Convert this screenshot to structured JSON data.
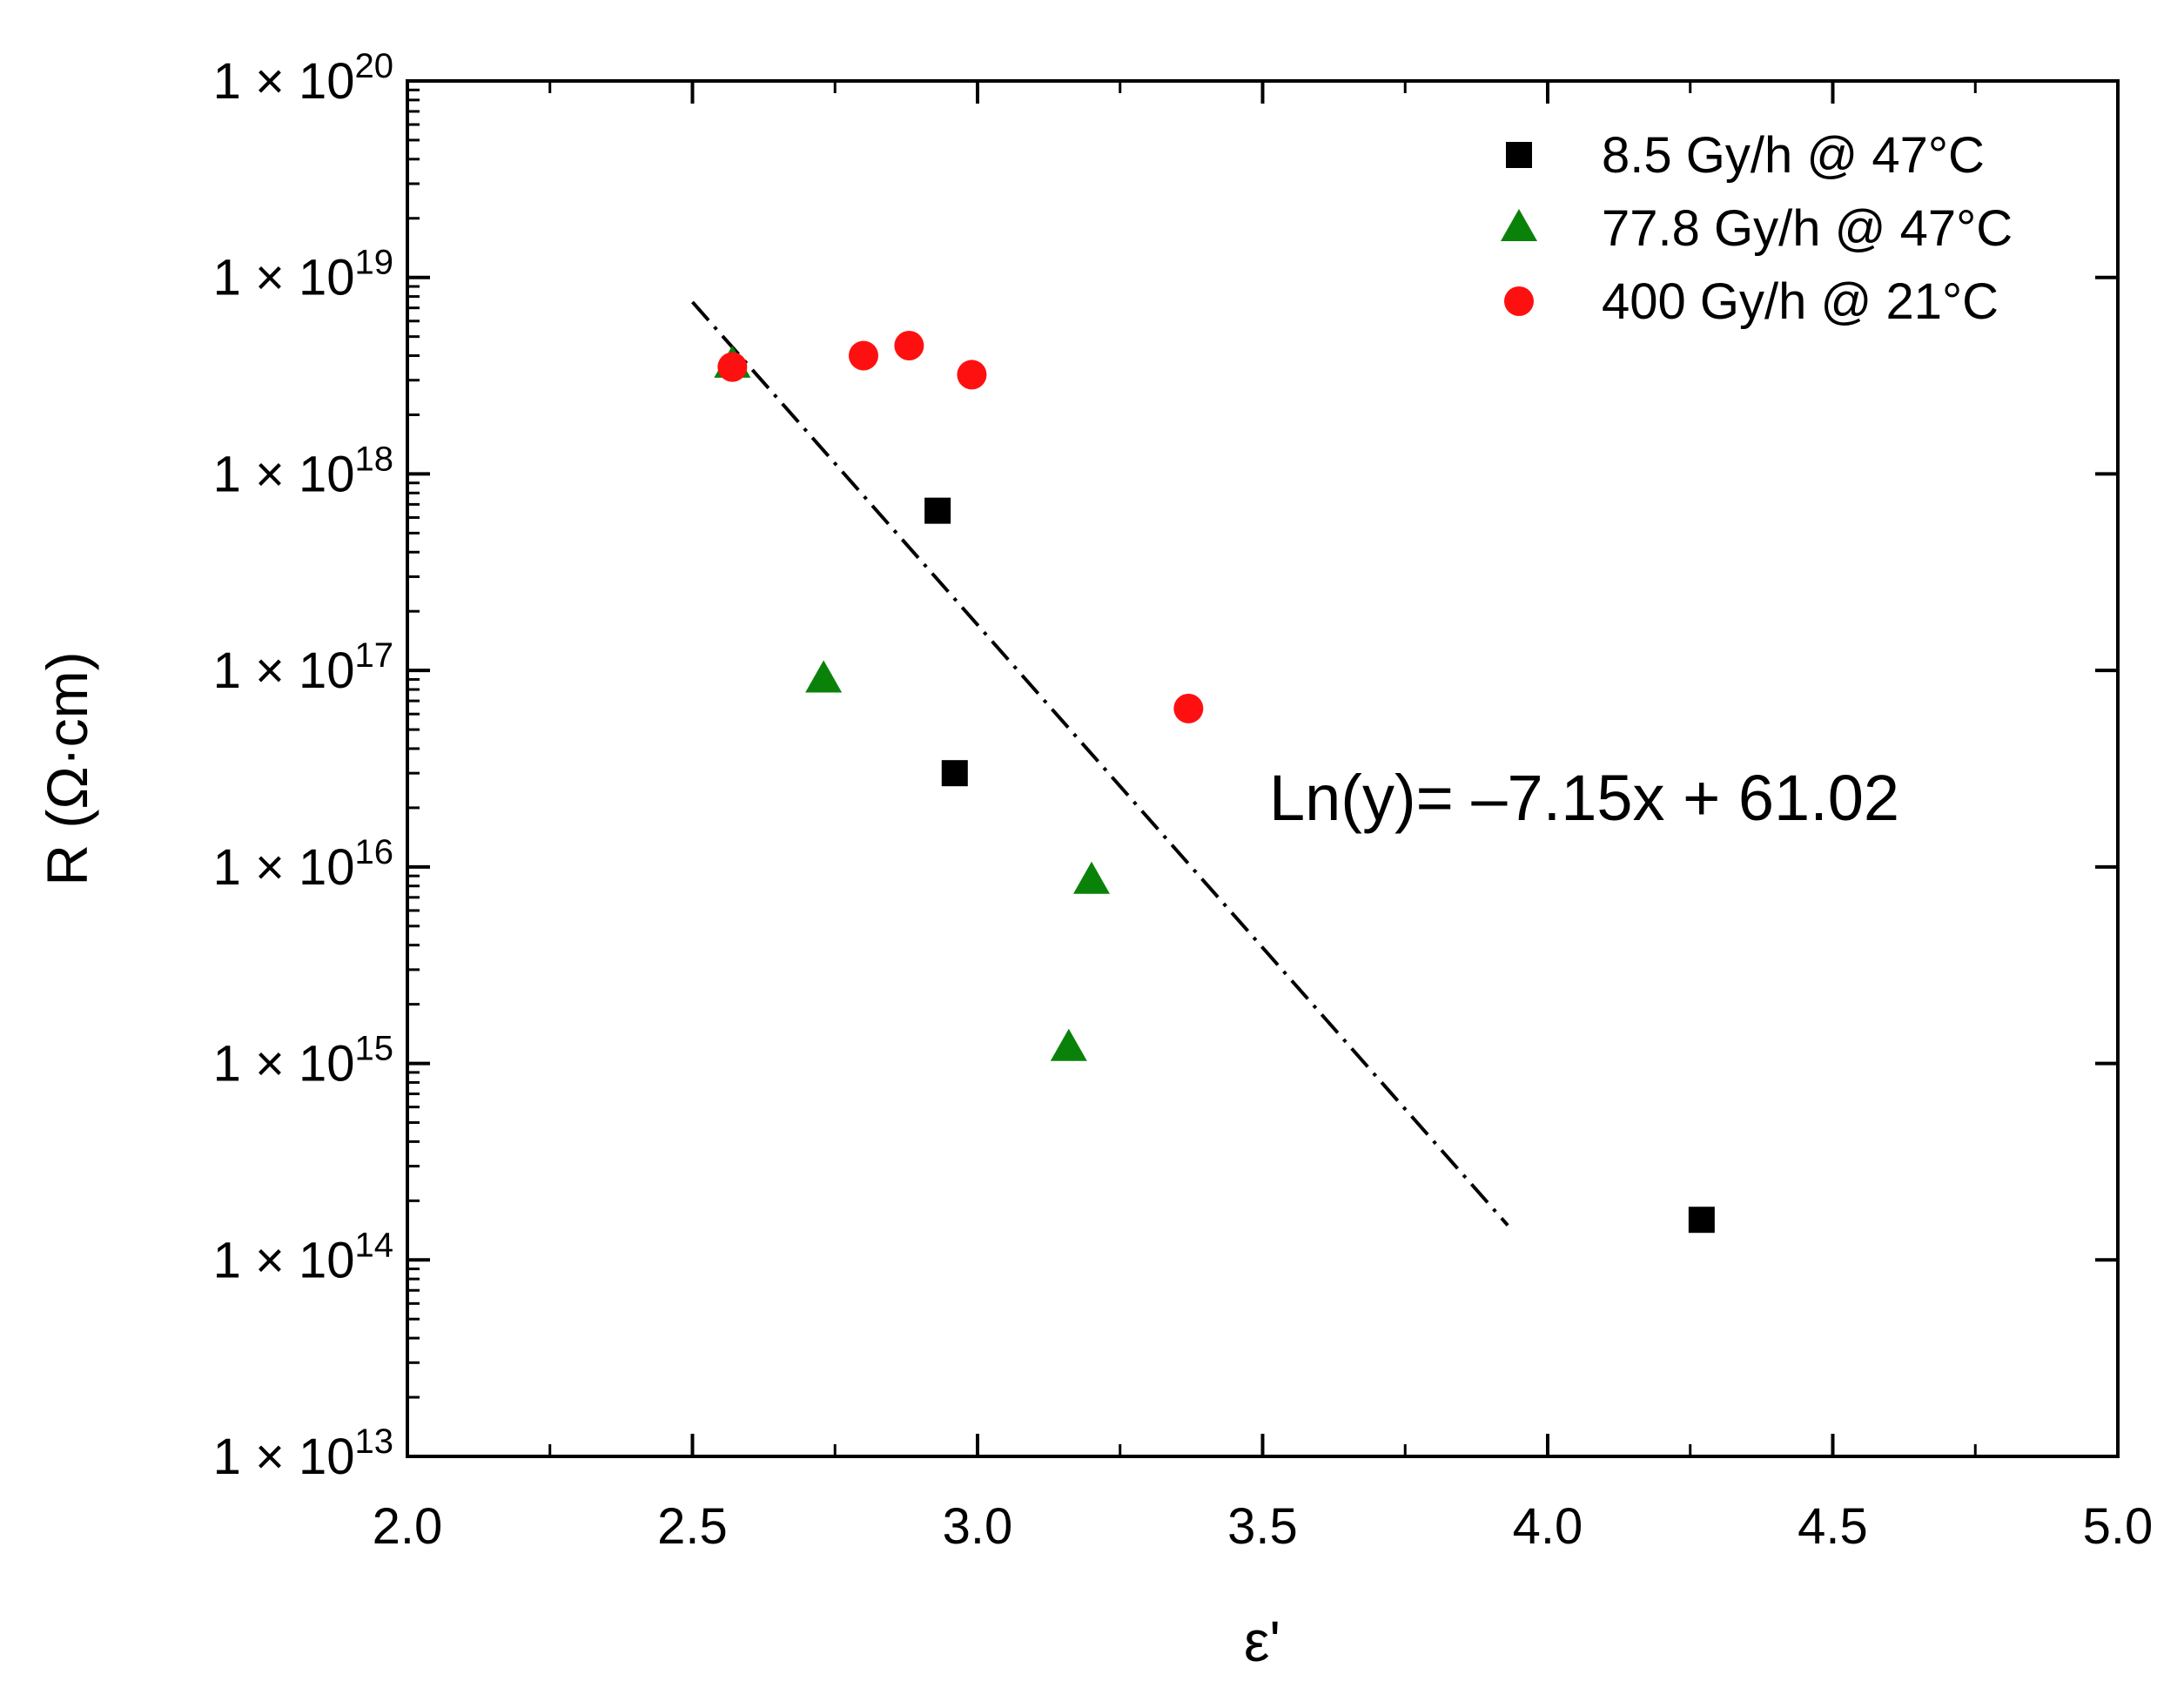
{
  "chart_data": {
    "type": "scatter",
    "title": "",
    "xlabel": "ε'",
    "ylabel": "R (Ω·cm)",
    "x_range": [
      2.0,
      5.0
    ],
    "y_scale": "log",
    "y_range": [
      10000000000000.0,
      1e+20
    ],
    "x_ticks": [
      "2.0",
      "2.5",
      "3.0",
      "3.5",
      "4.0",
      "4.5",
      "5.0"
    ],
    "y_ticks": [
      {
        "mantissa": "1 ×",
        "base": "10",
        "exp": "13"
      },
      {
        "mantissa": "1 ×",
        "base": "10",
        "exp": "14"
      },
      {
        "mantissa": "1 ×",
        "base": "10",
        "exp": "15"
      },
      {
        "mantissa": "1 ×",
        "base": "10",
        "exp": "16"
      },
      {
        "mantissa": "1 ×",
        "base": "10",
        "exp": "17"
      },
      {
        "mantissa": "1 ×",
        "base": "10",
        "exp": "18"
      },
      {
        "mantissa": "1 ×",
        "base": "10",
        "exp": "19"
      },
      {
        "mantissa": "1 ×",
        "base": "10",
        "exp": "20"
      }
    ],
    "series": [
      {
        "name": "8.5 Gy/h @ 47°C",
        "marker": "square",
        "color": "#000000",
        "points": [
          {
            "x": 2.93,
            "y": 6.5e+17
          },
          {
            "x": 2.96,
            "y": 3e+16
          },
          {
            "x": 4.27,
            "y": 160000000000000.0
          }
        ]
      },
      {
        "name": "77.8 Gy/h @ 47°C",
        "marker": "triangle",
        "color": "#0a820a",
        "points": [
          {
            "x": 2.57,
            "y": 3.6e+18
          },
          {
            "x": 2.73,
            "y": 9e+16
          },
          {
            "x": 3.2,
            "y": 8500000000000000.0
          },
          {
            "x": 3.16,
            "y": 1200000000000000.0
          }
        ]
      },
      {
        "name": "400 Gy/h @ 21°C",
        "marker": "circle",
        "color": "#ff1010",
        "points": [
          {
            "x": 2.57,
            "y": 3.5e+18
          },
          {
            "x": 2.8,
            "y": 4e+18
          },
          {
            "x": 2.88,
            "y": 4.5e+18
          },
          {
            "x": 2.99,
            "y": 3.2e+18
          },
          {
            "x": 3.37,
            "y": 6.4e+16
          }
        ]
      }
    ],
    "fit_line": {
      "x_start": 2.5,
      "x_end": 3.93,
      "y_start": 7.5e+18,
      "y_end": 150000000000000.0,
      "style": "dash-dot",
      "color": "#000000"
    },
    "annotation": "Ln(y)= –7.15x + 61.02",
    "legend_position": "top-right"
  }
}
